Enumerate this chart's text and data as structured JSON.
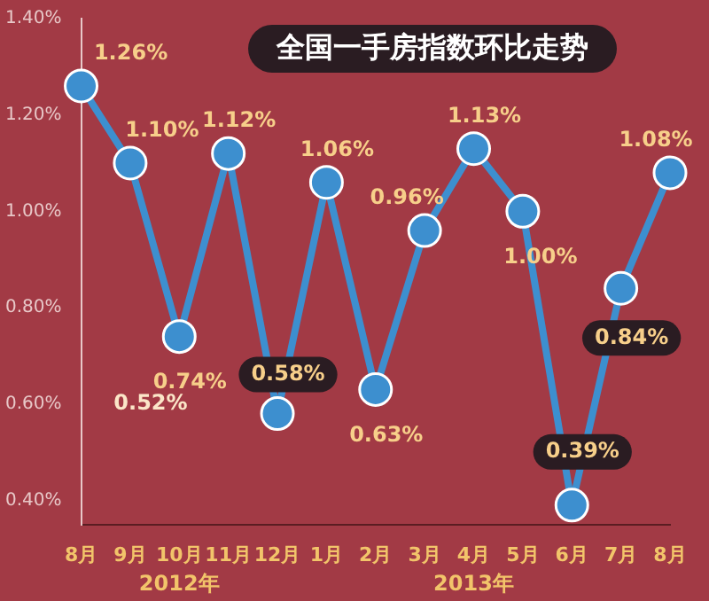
{
  "chart_data": {
    "type": "line",
    "title": "全国一手房指数环比走势",
    "categories": [
      "8月",
      "9月",
      "10月",
      "11月",
      "12月",
      "1月",
      "2月",
      "3月",
      "4月",
      "5月",
      "6月",
      "7月",
      "8月"
    ],
    "series": [
      {
        "color": "#3d8fcf",
        "values": [
          1.26,
          1.1,
          0.74,
          1.12,
          0.58,
          1.06,
          0.63,
          0.96,
          1.13,
          1.0,
          0.39,
          0.84,
          1.08
        ],
        "value_labels": [
          "1.26%",
          "1.10%",
          "0.74%",
          "1.12%",
          "0.58%",
          "1.06%",
          "0.63%",
          "0.96%",
          "1.13%",
          "1.00%",
          "0.39%",
          "0.84%",
          "1.08%"
        ]
      }
    ],
    "ylim": [
      0.35,
      1.4
    ],
    "yticks": [
      {
        "value": 0.4,
        "label": "0.40%"
      },
      {
        "value": 0.6,
        "label": "0.60%"
      },
      {
        "value": 0.8,
        "label": "0.80%"
      },
      {
        "value": 1.0,
        "label": "1.00%"
      },
      {
        "value": 1.2,
        "label": "1.20%"
      },
      {
        "value": 1.4,
        "label": "1.40%"
      }
    ],
    "annotations": [
      "0.52%",
      "2012年",
      "2013年"
    ],
    "marker": "circle",
    "line_style": "solid",
    "grid": false,
    "legend": false
  }
}
